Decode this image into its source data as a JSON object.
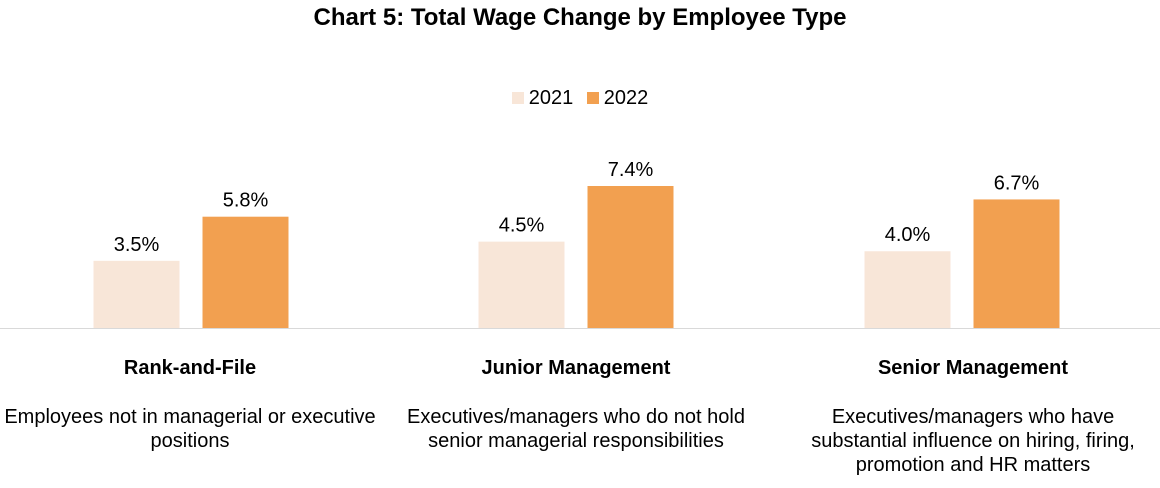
{
  "chart_data": {
    "type": "bar",
    "title": "Chart 5: Total Wage Change by Employee Type",
    "categories": [
      "Rank-and-File",
      "Junior Management",
      "Senior Management"
    ],
    "category_descriptions": [
      "Employees not in managerial or executive positions",
      "Executives/managers who do not hold senior managerial responsibilities",
      "Executives/managers who have substantial influence on hiring, firing, promotion and HR matters"
    ],
    "series": [
      {
        "name": "2021",
        "values": [
          3.5,
          4.5,
          4.0
        ],
        "labels": [
          "3.5%",
          "4.5%",
          "4.0%"
        ],
        "color": "#F8E6D8"
      },
      {
        "name": "2022",
        "values": [
          5.8,
          7.4,
          6.7
        ],
        "labels": [
          "5.8%",
          "7.4%",
          "6.7%"
        ],
        "color": "#F2A050"
      }
    ],
    "ylim": [
      0,
      7.4
    ],
    "legend_position": "top-center",
    "grid": false,
    "xlabel": "",
    "ylabel": ""
  }
}
